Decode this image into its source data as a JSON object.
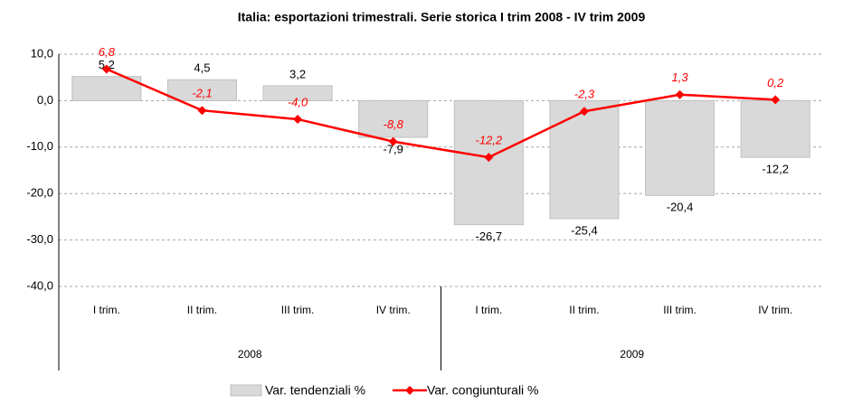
{
  "chart_data": {
    "type": "combo",
    "title": "Italia: esportazioni trimestrali. Serie storica I trim 2008 - IV trim 2009",
    "categories": [
      "I trim.",
      "II trim.",
      "III trim.",
      "IV trim.",
      "I trim.",
      "II trim.",
      "III trim.",
      "IV trim."
    ],
    "groups": [
      "2008",
      "2009"
    ],
    "series": [
      {
        "name": "Var. tendenziali %",
        "type": "bar",
        "color": "#d9d9d9",
        "values": [
          5.2,
          4.5,
          3.2,
          -7.9,
          -26.7,
          -25.4,
          -20.4,
          -12.2
        ],
        "value_labels": [
          "5,2",
          "4,5",
          "3,2",
          "-7,9",
          "-26,7",
          "-25,4",
          "-20,4",
          "-12,2"
        ]
      },
      {
        "name": "Var. congiunturali %",
        "type": "line",
        "color": "#ff0000",
        "values": [
          6.8,
          -2.1,
          -4.0,
          -8.8,
          -12.2,
          -2.3,
          1.3,
          0.2
        ],
        "value_labels": [
          "6,8",
          "-2,1",
          "-4,0",
          "-8,8",
          "-12,2",
          "-2,3",
          "1,3",
          "0,2"
        ]
      }
    ],
    "ylim": [
      -40,
      10
    ],
    "yticks": [
      {
        "value": -40,
        "label": "-40,0"
      },
      {
        "value": -30,
        "label": "-30,0"
      },
      {
        "value": -20,
        "label": "-20,0"
      },
      {
        "value": -10,
        "label": "-10,0"
      },
      {
        "value": 0,
        "label": "0,0"
      },
      {
        "value": 10,
        "label": "10,0"
      }
    ],
    "grid": true,
    "legend": "bottom"
  }
}
